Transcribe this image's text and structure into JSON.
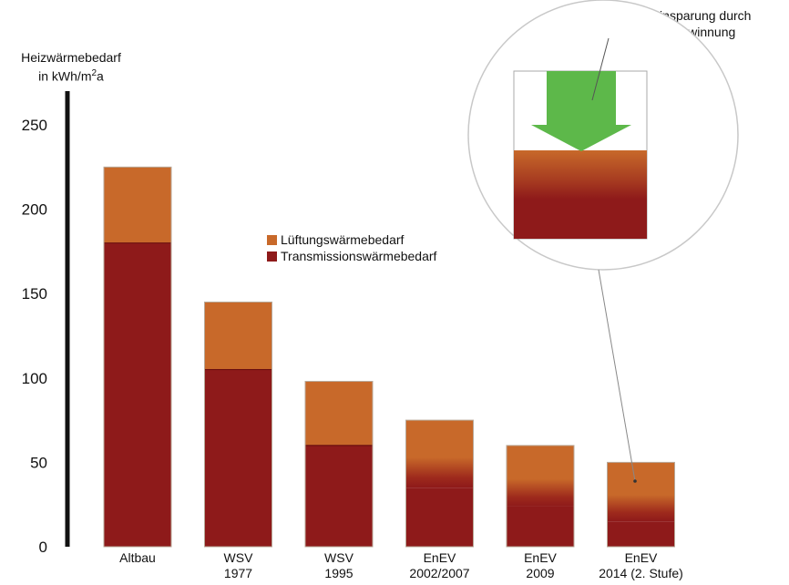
{
  "chart_data": {
    "type": "bar",
    "ylabel_line1": "Heizwärmebedarf",
    "ylabel_line2_prefix": "in kWh/m",
    "ylabel_line2_sup": "2",
    "ylabel_line2_suffix": "a",
    "ylim": [
      0,
      270
    ],
    "yticks": [
      0,
      50,
      100,
      150,
      200,
      250
    ],
    "categories": [
      {
        "line1": "Altbau",
        "line2": ""
      },
      {
        "line1": "WSV",
        "line2": "1977"
      },
      {
        "line1": "WSV",
        "line2": "1995"
      },
      {
        "line1": "EnEV",
        "line2": "2002/2007"
      },
      {
        "line1": "EnEV",
        "line2": "2009"
      },
      {
        "line1": "EnEV",
        "line2": "2014 (2. Stufe)"
      }
    ],
    "series": [
      {
        "name": "Transmissionswärmebedarf",
        "color": "#8e1a1a",
        "values": [
          180,
          105,
          60,
          35,
          24,
          15
        ]
      },
      {
        "name": "Lüftungswärmebedarf",
        "color": "#c8692a",
        "values": [
          45,
          40,
          38,
          40,
          36,
          35
        ]
      }
    ],
    "totals": [
      225,
      145,
      98,
      75,
      60,
      50
    ],
    "annotation_line1": "Energieeinsparung durch",
    "annotation_line2": "Wärmerückgewinnung",
    "savings_arrow_color": "#5db84a"
  }
}
